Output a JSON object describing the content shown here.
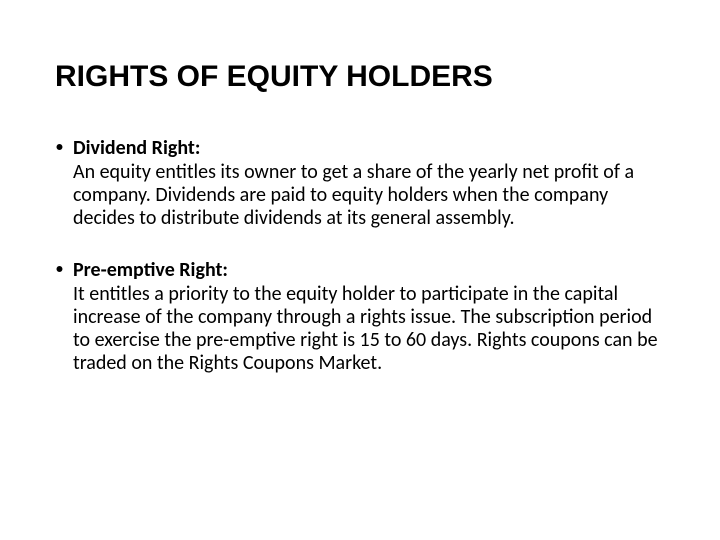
{
  "slide": {
    "title": "RIGHTS OF EQUITY HOLDERS",
    "bullets": [
      {
        "heading": "Dividend Right:",
        "body": "An equity entitles its owner to get a share of the yearly net profit of a company. Dividends are paid to equity holders when the company decides to distribute dividends at its general assembly."
      },
      {
        "heading": "Pre-emptive Right:",
        "body": "It entitles a priority to the equity holder to participate in the capital increase of the company through a rights issue. The subscription period to exercise the pre-emptive right is 15 to 60 days. Rights coupons can be traded on the Rights Coupons Market."
      }
    ]
  },
  "styling": {
    "background_color": "#ffffff",
    "text_color": "#000000",
    "title_fontsize": 30,
    "body_fontsize": 20,
    "title_font": "Arial",
    "body_font": "Calibri"
  }
}
